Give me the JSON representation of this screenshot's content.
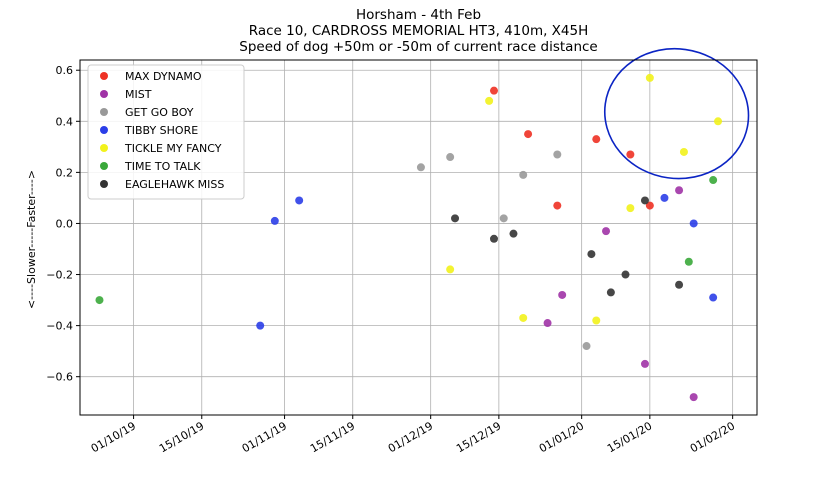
{
  "chart_data": {
    "type": "scatter",
    "title": [
      "Horsham  - 4th Feb",
      "Race 10, CARDROSS MEMORIAL HT3, 410m, X45H",
      "Speed of dog +50m or -50m of current race distance"
    ],
    "xlabel": "",
    "ylabel": "<----Slower-----Faster---->",
    "x_axis": "date",
    "xlim": [
      "2019-09-20",
      "2020-02-06"
    ],
    "ylim": [
      -0.75,
      0.64
    ],
    "x_ticks": [
      {
        "date": "2019-10-01",
        "label": "01/10/19"
      },
      {
        "date": "2019-10-15",
        "label": "15/10/19"
      },
      {
        "date": "2019-11-01",
        "label": "01/11/19"
      },
      {
        "date": "2019-11-15",
        "label": "15/11/19"
      },
      {
        "date": "2019-12-01",
        "label": "01/12/19"
      },
      {
        "date": "2019-12-15",
        "label": "15/12/19"
      },
      {
        "date": "2020-01-01",
        "label": "01/01/20"
      },
      {
        "date": "2020-01-15",
        "label": "15/01/20"
      },
      {
        "date": "2020-02-01",
        "label": "01/02/20"
      }
    ],
    "y_ticks": [
      {
        "value": 0.6,
        "label": "0.6"
      },
      {
        "value": 0.4,
        "label": "0.4"
      },
      {
        "value": 0.2,
        "label": "0.2"
      },
      {
        "value": 0.0,
        "label": "0.0"
      },
      {
        "value": -0.2,
        "label": "−0.2"
      },
      {
        "value": -0.4,
        "label": "−0.4"
      },
      {
        "value": -0.6,
        "label": "−0.6"
      }
    ],
    "grid": true,
    "legend_position": "top-left",
    "annotation": {
      "shape": "hand-drawn ellipse",
      "color": "#0b24c4",
      "x_range": [
        "2020-01-09",
        "2020-02-01"
      ],
      "y_range": [
        0.2,
        0.66
      ]
    },
    "series": [
      {
        "name": "MAX DYNAMO",
        "color": "#ee3124",
        "points": [
          {
            "x": "2019-12-14",
            "y": 0.52
          },
          {
            "x": "2019-12-21",
            "y": 0.35
          },
          {
            "x": "2019-12-27",
            "y": 0.07
          },
          {
            "x": "2020-01-04",
            "y": 0.33
          },
          {
            "x": "2020-01-11",
            "y": 0.27
          },
          {
            "x": "2020-01-15",
            "y": 0.07
          }
        ]
      },
      {
        "name": "MIST",
        "color": "#a033a6",
        "points": [
          {
            "x": "2019-12-25",
            "y": -0.39
          },
          {
            "x": "2019-12-28",
            "y": -0.28
          },
          {
            "x": "2020-01-06",
            "y": -0.03
          },
          {
            "x": "2020-01-14",
            "y": -0.55
          },
          {
            "x": "2020-01-21",
            "y": 0.13
          },
          {
            "x": "2020-01-24",
            "y": -0.68
          }
        ]
      },
      {
        "name": "GET GO BOY",
        "color": "#999999",
        "points": [
          {
            "x": "2019-11-29",
            "y": 0.22
          },
          {
            "x": "2019-12-05",
            "y": 0.26
          },
          {
            "x": "2019-12-16",
            "y": 0.02
          },
          {
            "x": "2019-12-20",
            "y": 0.19
          },
          {
            "x": "2019-12-27",
            "y": 0.27
          },
          {
            "x": "2020-01-02",
            "y": -0.48
          }
        ]
      },
      {
        "name": "TIBBY SHORE",
        "color": "#2b3ee8",
        "points": [
          {
            "x": "2019-10-27",
            "y": -0.4
          },
          {
            "x": "2019-10-30",
            "y": 0.01
          },
          {
            "x": "2019-11-04",
            "y": 0.09
          },
          {
            "x": "2020-01-18",
            "y": 0.1
          },
          {
            "x": "2020-01-24",
            "y": 0.0
          },
          {
            "x": "2020-01-28",
            "y": -0.29
          }
        ]
      },
      {
        "name": "TICKLE MY FANCY",
        "color": "#f2f21c",
        "points": [
          {
            "x": "2019-12-05",
            "y": -0.18
          },
          {
            "x": "2019-12-13",
            "y": 0.48
          },
          {
            "x": "2019-12-20",
            "y": -0.37
          },
          {
            "x": "2020-01-04",
            "y": -0.38
          },
          {
            "x": "2020-01-11",
            "y": 0.06
          },
          {
            "x": "2020-01-15",
            "y": 0.57
          },
          {
            "x": "2020-01-22",
            "y": 0.28
          },
          {
            "x": "2020-01-29",
            "y": 0.4
          }
        ]
      },
      {
        "name": "TIME TO TALK",
        "color": "#3aa83a",
        "points": [
          {
            "x": "2019-09-24",
            "y": -0.3
          },
          {
            "x": "2020-01-23",
            "y": -0.15
          },
          {
            "x": "2020-01-28",
            "y": 0.17
          }
        ]
      },
      {
        "name": "EAGLEHAWK MISS",
        "color": "#333333",
        "points": [
          {
            "x": "2019-12-06",
            "y": 0.02
          },
          {
            "x": "2019-12-14",
            "y": -0.06
          },
          {
            "x": "2019-12-18",
            "y": -0.04
          },
          {
            "x": "2020-01-03",
            "y": -0.12
          },
          {
            "x": "2020-01-07",
            "y": -0.27
          },
          {
            "x": "2020-01-10",
            "y": -0.2
          },
          {
            "x": "2020-01-14",
            "y": 0.09
          },
          {
            "x": "2020-01-21",
            "y": -0.24
          }
        ]
      }
    ]
  }
}
